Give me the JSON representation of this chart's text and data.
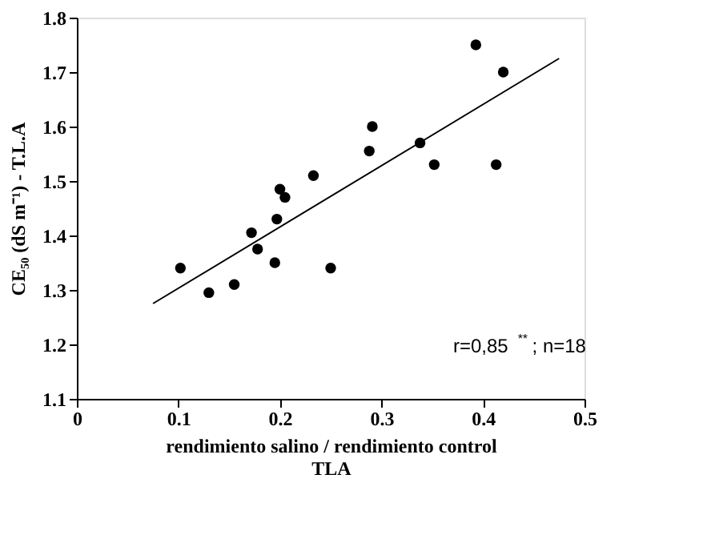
{
  "chart_data": {
    "type": "scatter",
    "xlabel": "rendimiento salino  /  rendimiento control\nTLA",
    "ylabel": "CE₅₀  (dS m⁻¹)  -  T.L.A",
    "xlim": [
      0,
      0.5
    ],
    "xticks": [
      0,
      0.1,
      0.2,
      0.3,
      0.4,
      0.5
    ],
    "ylim": [
      1.1,
      1.8
    ],
    "yticks": [
      1.1,
      1.2,
      1.3,
      1.4,
      1.5,
      1.6,
      1.7,
      1.8
    ],
    "grid": false,
    "annotations": [
      "r=0,85$^{**}$ ; n=18"
    ],
    "series": [
      {
        "marker": "circle",
        "color": "#000000",
        "x": [
          0.102,
          0.13,
          0.155,
          0.172,
          0.178,
          0.195,
          0.197,
          0.2,
          0.205,
          0.233,
          0.25,
          0.288,
          0.291,
          0.338,
          0.352,
          0.393,
          0.413,
          0.42
        ],
        "values": [
          1.34,
          1.295,
          1.31,
          1.405,
          1.375,
          1.35,
          1.43,
          1.485,
          1.47,
          1.51,
          1.34,
          1.555,
          1.6,
          1.57,
          1.53,
          1.75,
          1.53,
          1.7
        ]
      },
      {
        "type": "line",
        "color": "#000000",
        "x": [
          0.075,
          0.475
        ],
        "values": [
          1.275,
          1.725
        ]
      }
    ]
  }
}
